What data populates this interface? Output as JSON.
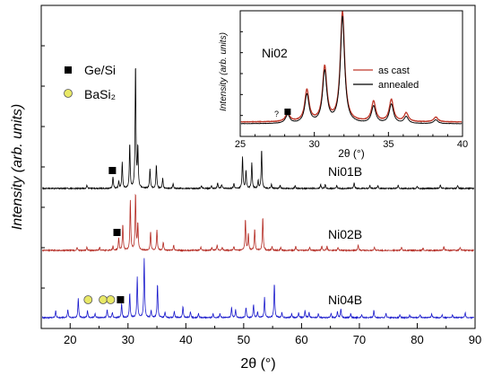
{
  "chart_data": [
    {
      "type": "line",
      "xlabel": "2θ (°)",
      "ylabel": "Intensity (arb. units)",
      "xlim": [
        15,
        90
      ],
      "x_ticks": [
        "20",
        "30",
        "40",
        "50",
        "60",
        "70",
        "80",
        "90"
      ],
      "y_ticks_labeled": false,
      "legend": [
        {
          "marker": "filled-square",
          "label": "Ge/Si",
          "color": "#000000"
        },
        {
          "marker": "open-circle",
          "label": "BaSi₂",
          "color": "#e8e866"
        }
      ],
      "series": [
        {
          "name": "Ni01B",
          "color": "#000000",
          "peaks": [
            {
              "x": 22.9,
              "h": 0.3
            },
            {
              "x": 27.4,
              "h": 1.2
            },
            {
              "x": 28.4,
              "h": 0.7
            },
            {
              "x": 29.0,
              "h": 2.6
            },
            {
              "x": 30.3,
              "h": 4.5
            },
            {
              "x": 31.3,
              "h": 12.6
            },
            {
              "x": 31.7,
              "h": 4.0
            },
            {
              "x": 33.8,
              "h": 2.0
            },
            {
              "x": 34.9,
              "h": 2.4
            },
            {
              "x": 36.0,
              "h": 1.0
            },
            {
              "x": 37.8,
              "h": 0.5
            },
            {
              "x": 42.7,
              "h": 0.3
            },
            {
              "x": 44.4,
              "h": 0.3
            },
            {
              "x": 45.5,
              "h": 0.6
            },
            {
              "x": 46.2,
              "h": 0.4
            },
            {
              "x": 48.3,
              "h": 0.5
            },
            {
              "x": 49.8,
              "h": 3.2
            },
            {
              "x": 50.4,
              "h": 1.8
            },
            {
              "x": 51.4,
              "h": 2.6
            },
            {
              "x": 52.5,
              "h": 0.8
            },
            {
              "x": 53.1,
              "h": 3.9
            },
            {
              "x": 54.8,
              "h": 0.4
            },
            {
              "x": 56.3,
              "h": 0.3
            },
            {
              "x": 58.9,
              "h": 0.3
            },
            {
              "x": 63.3,
              "h": 0.4
            },
            {
              "x": 64.1,
              "h": 0.4
            },
            {
              "x": 66.1,
              "h": 0.3
            },
            {
              "x": 69.1,
              "h": 0.6
            },
            {
              "x": 71.8,
              "h": 0.3
            },
            {
              "x": 73.2,
              "h": 0.3
            },
            {
              "x": 76.7,
              "h": 0.3
            },
            {
              "x": 80.0,
              "h": 0.2
            },
            {
              "x": 84.0,
              "h": 0.4
            },
            {
              "x": 87.0,
              "h": 0.3
            }
          ],
          "markers": [
            {
              "type": "Ge/Si",
              "x": 27.3
            }
          ]
        },
        {
          "name": "Ni02B",
          "color": "#b42a22",
          "peaks": [
            {
              "x": 21.2,
              "h": 0.3
            },
            {
              "x": 22.9,
              "h": 0.3
            },
            {
              "x": 25.1,
              "h": 0.3
            },
            {
              "x": 27.4,
              "h": 0.4
            },
            {
              "x": 28.4,
              "h": 1.2
            },
            {
              "x": 29.1,
              "h": 2.5
            },
            {
              "x": 30.4,
              "h": 4.8
            },
            {
              "x": 31.3,
              "h": 5.5
            },
            {
              "x": 31.7,
              "h": 2.5
            },
            {
              "x": 33.9,
              "h": 1.8
            },
            {
              "x": 35.0,
              "h": 2.0
            },
            {
              "x": 36.1,
              "h": 0.8
            },
            {
              "x": 37.9,
              "h": 0.5
            },
            {
              "x": 42.6,
              "h": 0.3
            },
            {
              "x": 44.5,
              "h": 0.3
            },
            {
              "x": 45.4,
              "h": 0.5
            },
            {
              "x": 46.3,
              "h": 0.3
            },
            {
              "x": 48.3,
              "h": 0.4
            },
            {
              "x": 50.3,
              "h": 3.0
            },
            {
              "x": 50.8,
              "h": 1.6
            },
            {
              "x": 51.9,
              "h": 2.1
            },
            {
              "x": 53.3,
              "h": 3.2
            },
            {
              "x": 54.9,
              "h": 0.4
            },
            {
              "x": 56.4,
              "h": 0.3
            },
            {
              "x": 59.0,
              "h": 0.4
            },
            {
              "x": 61.4,
              "h": 0.3
            },
            {
              "x": 63.5,
              "h": 0.4
            },
            {
              "x": 64.4,
              "h": 0.4
            },
            {
              "x": 66.3,
              "h": 0.3
            },
            {
              "x": 69.8,
              "h": 0.5
            },
            {
              "x": 72.6,
              "h": 0.3
            },
            {
              "x": 77.3,
              "h": 0.3
            },
            {
              "x": 81.0,
              "h": 0.2
            },
            {
              "x": 84.6,
              "h": 0.4
            },
            {
              "x": 87.4,
              "h": 0.3
            }
          ],
          "markers": [
            {
              "type": "Ge/Si",
              "x": 28.1
            }
          ]
        },
        {
          "name": "Ni04B",
          "color": "#1a1acc",
          "peaks": [
            {
              "x": 17.5,
              "h": 0.7
            },
            {
              "x": 19.6,
              "h": 0.8
            },
            {
              "x": 21.4,
              "h": 1.9
            },
            {
              "x": 23.0,
              "h": 0.7
            },
            {
              "x": 24.3,
              "h": 0.4
            },
            {
              "x": 26.4,
              "h": 0.8
            },
            {
              "x": 27.3,
              "h": 0.5
            },
            {
              "x": 28.9,
              "h": 1.4
            },
            {
              "x": 30.3,
              "h": 2.4
            },
            {
              "x": 31.6,
              "h": 4.0
            },
            {
              "x": 32.8,
              "h": 5.9
            },
            {
              "x": 34.0,
              "h": 0.7
            },
            {
              "x": 35.1,
              "h": 3.3
            },
            {
              "x": 36.4,
              "h": 0.5
            },
            {
              "x": 38.0,
              "h": 0.6
            },
            {
              "x": 39.5,
              "h": 1.1
            },
            {
              "x": 40.8,
              "h": 0.6
            },
            {
              "x": 42.2,
              "h": 0.4
            },
            {
              "x": 44.7,
              "h": 0.4
            },
            {
              "x": 45.9,
              "h": 0.4
            },
            {
              "x": 47.9,
              "h": 1.0
            },
            {
              "x": 48.6,
              "h": 0.8
            },
            {
              "x": 50.4,
              "h": 1.0
            },
            {
              "x": 51.7,
              "h": 1.3
            },
            {
              "x": 52.4,
              "h": 0.6
            },
            {
              "x": 53.6,
              "h": 2.0
            },
            {
              "x": 55.3,
              "h": 3.4
            },
            {
              "x": 56.6,
              "h": 0.5
            },
            {
              "x": 58.3,
              "h": 0.4
            },
            {
              "x": 59.5,
              "h": 0.5
            },
            {
              "x": 60.6,
              "h": 0.7
            },
            {
              "x": 61.3,
              "h": 0.5
            },
            {
              "x": 62.9,
              "h": 0.4
            },
            {
              "x": 65.1,
              "h": 0.4
            },
            {
              "x": 66.2,
              "h": 0.6
            },
            {
              "x": 66.8,
              "h": 0.9
            },
            {
              "x": 68.5,
              "h": 0.4
            },
            {
              "x": 70.4,
              "h": 0.3
            },
            {
              "x": 72.5,
              "h": 0.7
            },
            {
              "x": 74.6,
              "h": 0.4
            },
            {
              "x": 77.0,
              "h": 0.3
            },
            {
              "x": 78.7,
              "h": 0.3
            },
            {
              "x": 80.5,
              "h": 0.3
            },
            {
              "x": 82.5,
              "h": 0.4
            },
            {
              "x": 84.3,
              "h": 0.3
            },
            {
              "x": 86.1,
              "h": 0.3
            },
            {
              "x": 88.3,
              "h": 0.5
            }
          ],
          "markers": [
            {
              "type": "BaSi₂",
              "x": 23.1
            },
            {
              "type": "BaSi₂",
              "x": 25.7
            },
            {
              "type": "BaSi₂",
              "x": 27.0
            },
            {
              "type": "Ge/Si",
              "x": 28.7
            }
          ]
        }
      ]
    },
    {
      "type": "line",
      "inset": true,
      "label": "Ni02",
      "xlabel": "2θ (°)",
      "ylabel": "Intensity (arb. units)",
      "xlim": [
        25,
        40
      ],
      "x_ticks": [
        "25",
        "30",
        "35",
        "40"
      ],
      "legend": [
        {
          "label": "as cast",
          "color": "#c0392b"
        },
        {
          "label": "annealed",
          "color": "#000000"
        }
      ],
      "series": [
        {
          "name": "as cast",
          "color": "#c0392b",
          "peaks": [
            {
              "x": 28.2,
              "h": 0.9
            },
            {
              "x": 29.5,
              "h": 3.3
            },
            {
              "x": 30.7,
              "h": 5.7
            },
            {
              "x": 31.9,
              "h": 11.5
            },
            {
              "x": 34.0,
              "h": 2.1
            },
            {
              "x": 35.2,
              "h": 2.3
            },
            {
              "x": 36.2,
              "h": 0.9
            },
            {
              "x": 38.2,
              "h": 0.5
            }
          ]
        },
        {
          "name": "annealed",
          "color": "#000000",
          "peaks": [
            {
              "x": 28.2,
              "h": 0.9
            },
            {
              "x": 29.5,
              "h": 3.0
            },
            {
              "x": 30.7,
              "h": 5.4
            },
            {
              "x": 31.9,
              "h": 11.2
            },
            {
              "x": 34.0,
              "h": 1.8
            },
            {
              "x": 35.2,
              "h": 2.0
            },
            {
              "x": 36.2,
              "h": 0.7
            },
            {
              "x": 38.2,
              "h": 0.4
            }
          ]
        }
      ],
      "annotations": [
        {
          "text": "?",
          "x": 27.7
        },
        {
          "marker": "Ge/Si",
          "x": 28.2
        }
      ]
    }
  ]
}
